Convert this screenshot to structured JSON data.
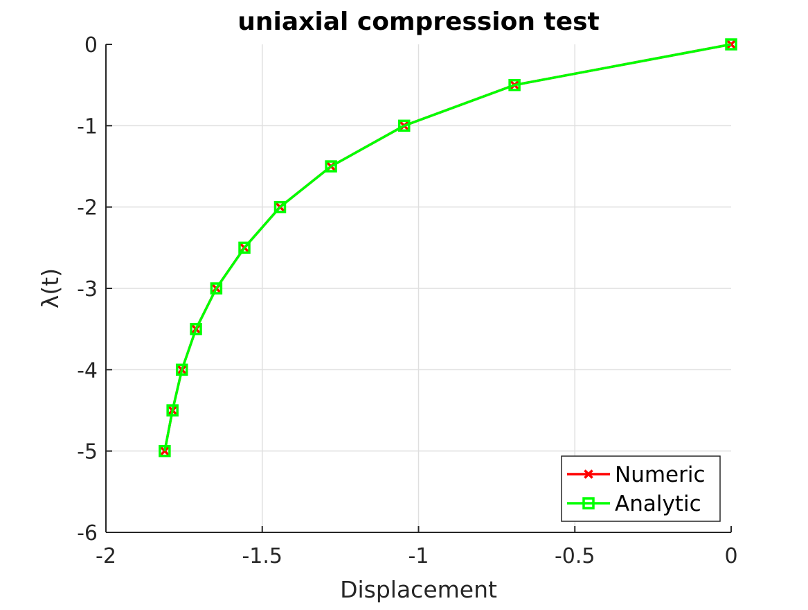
{
  "chart_data": {
    "type": "line",
    "title": "uniaxial compression test",
    "xlabel": "Displacement",
    "ylabel": "λ(t)",
    "xlim": [
      -2,
      0
    ],
    "ylim": [
      -6,
      0
    ],
    "xticks": [
      -2,
      -1.5,
      -1,
      -0.5,
      0
    ],
    "xtick_labels": [
      "-2",
      "-1.5",
      "-1",
      "-0.5",
      "0"
    ],
    "yticks": [
      0,
      -1,
      -2,
      -3,
      -4,
      -5,
      -6
    ],
    "ytick_labels": [
      "0",
      "-1",
      "-2",
      "-3",
      "-4",
      "-5",
      "-6"
    ],
    "grid": true,
    "legend_position": "bottom-right",
    "series": [
      {
        "name": "Numeric",
        "color": "#ff0000",
        "marker": "x",
        "x": [
          0,
          -0.693,
          -1.046,
          -1.28,
          -1.443,
          -1.557,
          -1.647,
          -1.712,
          -1.757,
          -1.787,
          -1.812
        ],
        "y": [
          0,
          -0.5,
          -1,
          -1.5,
          -2,
          -2.5,
          -3,
          -3.5,
          -4,
          -4.5,
          -5
        ]
      },
      {
        "name": "Analytic",
        "color": "#00ff00",
        "marker": "square",
        "x": [
          0,
          -0.693,
          -1.046,
          -1.28,
          -1.443,
          -1.557,
          -1.647,
          -1.712,
          -1.757,
          -1.787,
          -1.812
        ],
        "y": [
          0,
          -0.5,
          -1,
          -1.5,
          -2,
          -2.5,
          -3,
          -3.5,
          -4,
          -4.5,
          -5
        ]
      }
    ]
  }
}
